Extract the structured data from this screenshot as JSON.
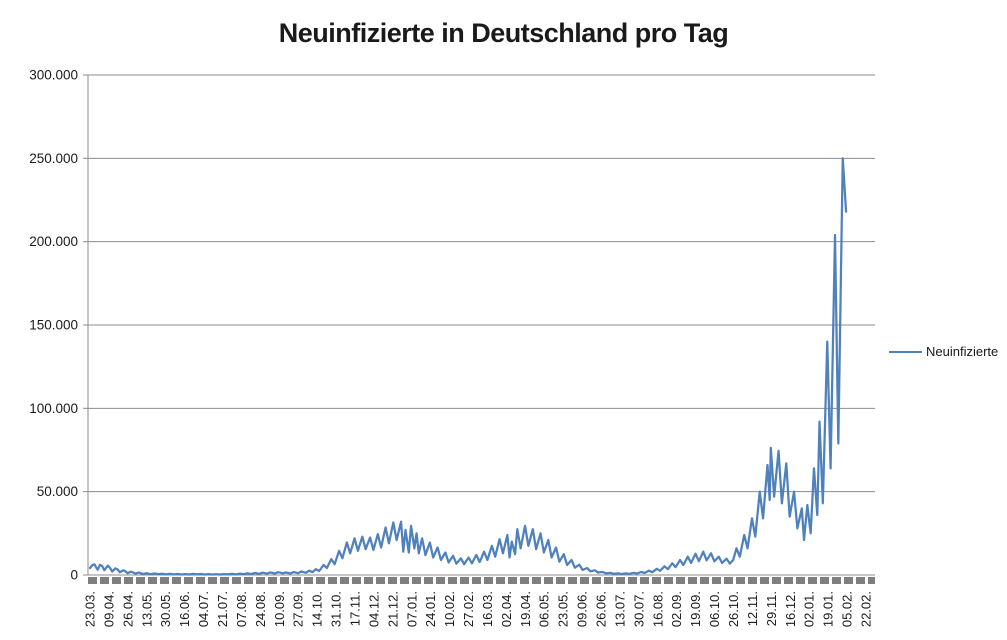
{
  "title": "Neuinfizierte in Deutschland pro Tag",
  "legend": {
    "series_label": "Neuinfizierte"
  },
  "colors": {
    "series_line": "#4F81BD",
    "gridline": "#8C8C8C",
    "axis_line": "#8C8C8C",
    "tick_band": "#7F7F7F",
    "text": "#1A1A1A",
    "background": "#FFFFFF"
  },
  "chart_data": {
    "type": "line",
    "title": "Neuinfizierte in Deutschland pro Tag",
    "grid": "horizontal",
    "legend_position": "right",
    "series_name": "Neuinfizierte",
    "x_axis": {
      "span_days": 701,
      "label_rotation_deg": 90,
      "tick_labels": [
        "23.03.",
        "09.04.",
        "26.04.",
        "13.05.",
        "30.05.",
        "16.06.",
        "04.07.",
        "21.07.",
        "07.08.",
        "24.08.",
        "10.09.",
        "27.09.",
        "14.10.",
        "31.10.",
        "17.11.",
        "04.12.",
        "21.12.",
        "07.01.",
        "24.01.",
        "10.02.",
        "27.02.",
        "16.03.",
        "02.04.",
        "19.04.",
        "06.05.",
        "23.05.",
        "09.06.",
        "26.06.",
        "13.07.",
        "30.07.",
        "16.08.",
        "02.09.",
        "19.09.",
        "06.10.",
        "26.10.",
        "12.11.",
        "29.11.",
        "16.12.",
        "02.01.",
        "19.01.",
        "05.02.",
        "22.02."
      ]
    },
    "y_axis": {
      "min": 0,
      "max": 300000,
      "tick_step": 50000,
      "tick_labels": [
        "300.000",
        "250.000",
        "200.000",
        "150.000",
        "100.000",
        "50.000",
        "0"
      ]
    },
    "points": [
      [
        0,
        4200
      ],
      [
        2,
        5900
      ],
      [
        4,
        6400
      ],
      [
        6,
        4000
      ],
      [
        7,
        3200
      ],
      [
        9,
        6100
      ],
      [
        11,
        5400
      ],
      [
        13,
        2900
      ],
      [
        16,
        5600
      ],
      [
        18,
        4400
      ],
      [
        20,
        2100
      ],
      [
        23,
        4000
      ],
      [
        25,
        3300
      ],
      [
        27,
        1600
      ],
      [
        30,
        2800
      ],
      [
        32,
        2200
      ],
      [
        34,
        1100
      ],
      [
        37,
        2000
      ],
      [
        39,
        1500
      ],
      [
        41,
        800
      ],
      [
        44,
        1500
      ],
      [
        46,
        1000
      ],
      [
        48,
        600
      ],
      [
        51,
        1100
      ],
      [
        53,
        800
      ],
      [
        55,
        450
      ],
      [
        58,
        900
      ],
      [
        62,
        500
      ],
      [
        65,
        750
      ],
      [
        69,
        400
      ],
      [
        72,
        650
      ],
      [
        76,
        350
      ],
      [
        79,
        600
      ],
      [
        83,
        300
      ],
      [
        86,
        550
      ],
      [
        90,
        300
      ],
      [
        93,
        650
      ],
      [
        97,
        350
      ],
      [
        100,
        600
      ],
      [
        104,
        300
      ],
      [
        107,
        500
      ],
      [
        111,
        280
      ],
      [
        114,
        450
      ],
      [
        118,
        300
      ],
      [
        121,
        550
      ],
      [
        125,
        350
      ],
      [
        128,
        650
      ],
      [
        132,
        400
      ],
      [
        135,
        800
      ],
      [
        139,
        500
      ],
      [
        142,
        1000
      ],
      [
        146,
        600
      ],
      [
        149,
        1200
      ],
      [
        153,
        700
      ],
      [
        156,
        1400
      ],
      [
        160,
        850
      ],
      [
        163,
        1550
      ],
      [
        167,
        900
      ],
      [
        170,
        1700
      ],
      [
        174,
        1000
      ],
      [
        177,
        1500
      ],
      [
        181,
        950
      ],
      [
        184,
        1750
      ],
      [
        188,
        1100
      ],
      [
        191,
        2100
      ],
      [
        195,
        1300
      ],
      [
        198,
        2600
      ],
      [
        201,
        1700
      ],
      [
        204,
        3500
      ],
      [
        207,
        2400
      ],
      [
        211,
        6000
      ],
      [
        214,
        4200
      ],
      [
        218,
        9500
      ],
      [
        221,
        6500
      ],
      [
        225,
        14500
      ],
      [
        228,
        10000
      ],
      [
        232,
        19500
      ],
      [
        235,
        13000
      ],
      [
        239,
        22000
      ],
      [
        242,
        14500
      ],
      [
        246,
        23000
      ],
      [
        249,
        15500
      ],
      [
        253,
        22500
      ],
      [
        256,
        15000
      ],
      [
        260,
        24500
      ],
      [
        263,
        16500
      ],
      [
        267,
        28500
      ],
      [
        270,
        19000
      ],
      [
        274,
        31500
      ],
      [
        277,
        21000
      ],
      [
        281,
        32000
      ],
      [
        283,
        14000
      ],
      [
        285,
        27000
      ],
      [
        288,
        13500
      ],
      [
        290,
        29500
      ],
      [
        293,
        16000
      ],
      [
        295,
        25000
      ],
      [
        297,
        13000
      ],
      [
        300,
        22000
      ],
      [
        303,
        12000
      ],
      [
        307,
        19500
      ],
      [
        310,
        10500
      ],
      [
        314,
        16500
      ],
      [
        317,
        9000
      ],
      [
        321,
        13500
      ],
      [
        324,
        7500
      ],
      [
        328,
        11500
      ],
      [
        331,
        6800
      ],
      [
        335,
        10000
      ],
      [
        338,
        6500
      ],
      [
        342,
        10500
      ],
      [
        345,
        7000
      ],
      [
        349,
        12000
      ],
      [
        352,
        7800
      ],
      [
        356,
        14000
      ],
      [
        359,
        9000
      ],
      [
        363,
        17500
      ],
      [
        366,
        11000
      ],
      [
        370,
        21500
      ],
      [
        373,
        13000
      ],
      [
        377,
        24000
      ],
      [
        379,
        10500
      ],
      [
        381,
        20000
      ],
      [
        384,
        12500
      ],
      [
        386,
        27500
      ],
      [
        389,
        16000
      ],
      [
        393,
        29500
      ],
      [
        396,
        17500
      ],
      [
        400,
        27500
      ],
      [
        403,
        15500
      ],
      [
        407,
        25000
      ],
      [
        410,
        13500
      ],
      [
        414,
        21000
      ],
      [
        417,
        10500
      ],
      [
        421,
        16500
      ],
      [
        424,
        8000
      ],
      [
        428,
        12500
      ],
      [
        431,
        6000
      ],
      [
        435,
        9000
      ],
      [
        438,
        4400
      ],
      [
        442,
        6200
      ],
      [
        445,
        3000
      ],
      [
        449,
        4200
      ],
      [
        452,
        2200
      ],
      [
        456,
        2800
      ],
      [
        459,
        1500
      ],
      [
        463,
        1800
      ],
      [
        466,
        1000
      ],
      [
        470,
        1300
      ],
      [
        473,
        700
      ],
      [
        477,
        1000
      ],
      [
        480,
        600
      ],
      [
        484,
        1000
      ],
      [
        487,
        650
      ],
      [
        491,
        1300
      ],
      [
        494,
        850
      ],
      [
        498,
        1800
      ],
      [
        501,
        1200
      ],
      [
        505,
        2600
      ],
      [
        508,
        1700
      ],
      [
        512,
        3700
      ],
      [
        515,
        2500
      ],
      [
        519,
        5200
      ],
      [
        522,
        3500
      ],
      [
        526,
        7000
      ],
      [
        529,
        4700
      ],
      [
        533,
        9000
      ],
      [
        536,
        6000
      ],
      [
        540,
        11000
      ],
      [
        543,
        7200
      ],
      [
        547,
        12800
      ],
      [
        550,
        8300
      ],
      [
        554,
        14000
      ],
      [
        557,
        8800
      ],
      [
        561,
        13000
      ],
      [
        564,
        8200
      ],
      [
        568,
        11000
      ],
      [
        571,
        7200
      ],
      [
        575,
        9800
      ],
      [
        578,
        6800
      ],
      [
        581,
        9000
      ],
      [
        584,
        16000
      ],
      [
        587,
        11000
      ],
      [
        591,
        24000
      ],
      [
        594,
        16000
      ],
      [
        598,
        34000
      ],
      [
        601,
        23000
      ],
      [
        605,
        50000
      ],
      [
        608,
        34000
      ],
      [
        612,
        66000
      ],
      [
        614,
        45000
      ],
      [
        615,
        76300
      ],
      [
        618,
        47000
      ],
      [
        622,
        74500
      ],
      [
        625,
        43000
      ],
      [
        629,
        67000
      ],
      [
        632,
        35000
      ],
      [
        636,
        50000
      ],
      [
        639,
        28000
      ],
      [
        643,
        40000
      ],
      [
        645,
        21000
      ],
      [
        648,
        42000
      ],
      [
        651,
        25000
      ],
      [
        654,
        64000
      ],
      [
        657,
        36000
      ],
      [
        659,
        92000
      ],
      [
        662,
        43000
      ],
      [
        666,
        140000
      ],
      [
        669,
        64000
      ],
      [
        673,
        204000
      ],
      [
        676,
        79000
      ],
      [
        680,
        250000
      ],
      [
        683,
        218000
      ]
    ]
  }
}
